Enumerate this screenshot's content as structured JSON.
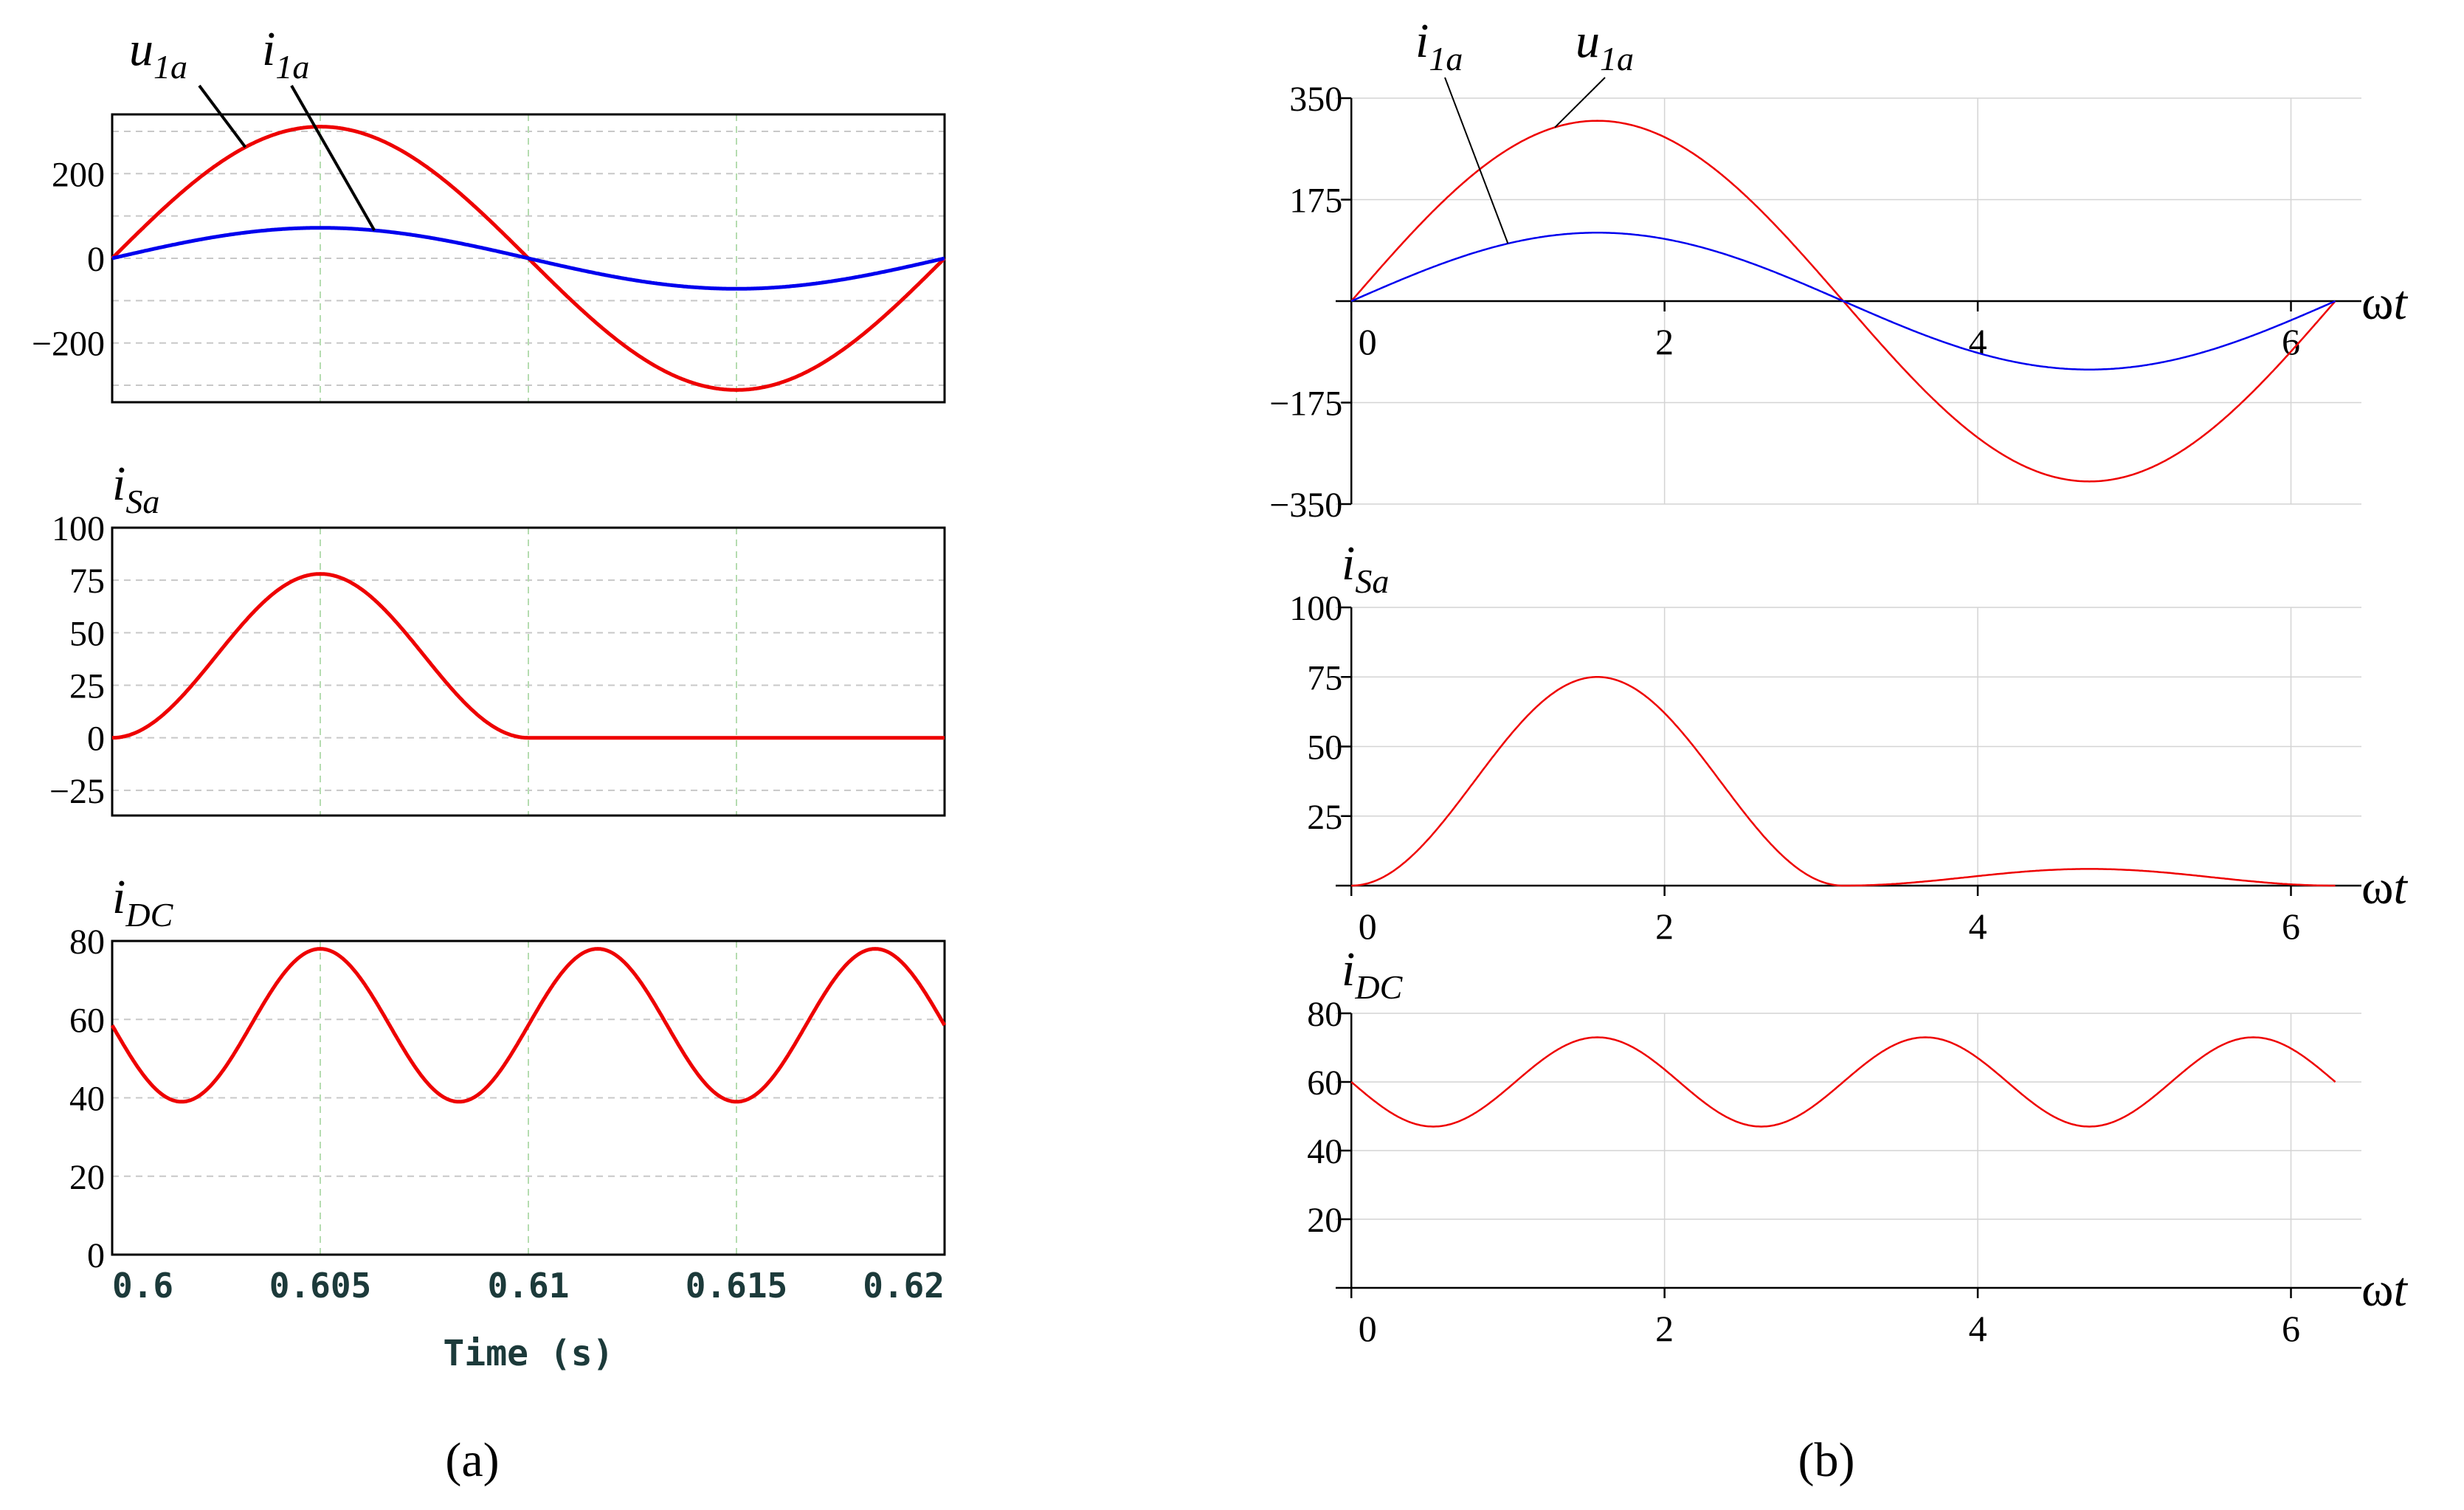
{
  "panel_labels": {
    "a": "(a)",
    "b": "(b)"
  },
  "colors": {
    "red": "#ee0000",
    "blue": "#0000ee",
    "axis": "#000000",
    "grid_a": "#c8c8c8",
    "grid_a_v": "#b5dcb0",
    "grid_b": "#d4d4d4",
    "tick_label_a": "#1c3a3a"
  },
  "chart_data": [
    {
      "id": "a1",
      "type": "line",
      "panel": "a",
      "xlim": [
        0.6,
        0.62
      ],
      "ylim": [
        -340,
        340
      ],
      "yticks": [
        -200,
        0,
        200
      ],
      "ytick_labels": [
        "−200",
        "0",
        "200"
      ],
      "ygrid": [
        -300,
        -200,
        -100,
        0,
        100,
        200,
        300
      ],
      "xgrid": [
        0.605,
        0.61,
        0.615
      ],
      "series": [
        {
          "name": "u1a",
          "color": "red",
          "shape": "sine",
          "amplitude": 311,
          "x0": 0.6,
          "period": 0.02
        },
        {
          "name": "i1a",
          "color": "blue",
          "shape": "sine",
          "amplitude": 72,
          "x0": 0.6,
          "period": 0.02
        }
      ],
      "annotations": [
        {
          "letter": "u",
          "subscript": "1a",
          "target_series": "u1a",
          "target_x": 0.6032
        },
        {
          "letter": "i",
          "subscript": "1a",
          "target_series": "i1a",
          "target_x": 0.6063
        }
      ]
    },
    {
      "id": "a2",
      "type": "line",
      "panel": "a",
      "xlim": [
        0.6,
        0.62
      ],
      "ylim": [
        -37,
        100
      ],
      "yticks": [
        -25,
        0,
        25,
        50,
        75,
        100
      ],
      "ytick_labels": [
        "−25",
        "0",
        "25",
        "50",
        "75",
        "100"
      ],
      "ygrid": [
        -25,
        0,
        25,
        50,
        75
      ],
      "xgrid": [
        0.605,
        0.61,
        0.615
      ],
      "ylabel": {
        "letter": "i",
        "subscript": "Sa"
      },
      "series": [
        {
          "name": "iSa",
          "color": "red",
          "shape": "sin2",
          "amplitude": 78,
          "x0": 0.6,
          "period": 0.02
        }
      ]
    },
    {
      "id": "a3",
      "type": "line",
      "panel": "a",
      "xlim": [
        0.6,
        0.62
      ],
      "ylim": [
        0,
        80
      ],
      "yticks": [
        0,
        20,
        40,
        60,
        80
      ],
      "ytick_labels": [
        "0",
        "20",
        "40",
        "60",
        "80"
      ],
      "ygrid": [
        20,
        40,
        60
      ],
      "xgrid": [
        0.605,
        0.61,
        0.615
      ],
      "ylabel": {
        "letter": "i",
        "subscript": "DC"
      },
      "xticks": [
        0.6,
        0.605,
        0.61,
        0.615,
        0.62
      ],
      "xtick_labels": [
        "0.6",
        "0.605",
        "0.61",
        "0.615",
        "0.62"
      ],
      "xlabel": "Time (s)",
      "series": [
        {
          "name": "iDC",
          "color": "red",
          "shape": "cos3",
          "offset": 58.5,
          "amplitude": 19.5,
          "x0": 0.6,
          "period": 0.02
        }
      ]
    },
    {
      "id": "b1",
      "type": "line",
      "panel": "b",
      "xlim": [
        -0.1,
        6.45
      ],
      "ylim": [
        -350,
        350
      ],
      "yticks": [
        -350,
        -175,
        175,
        350
      ],
      "ytick_labels": [
        "−350",
        "−175",
        "175",
        "350"
      ],
      "xticks": [
        0,
        2,
        4,
        6
      ],
      "xtick_labels": [
        "0",
        "2",
        "4",
        "6"
      ],
      "xgrid": [
        2,
        4,
        6
      ],
      "ygrid": [
        -350,
        -175,
        175,
        350
      ],
      "xlabel": {
        "greek": "ω",
        "letter": "t"
      },
      "series": [
        {
          "name": "u1a",
          "color": "red",
          "shape": "sine",
          "amplitude": 311,
          "x0": 0,
          "period": 6.2832,
          "xmax": 6.2832
        },
        {
          "name": "i1a",
          "color": "blue",
          "shape": "sine",
          "amplitude": 118,
          "x0": 0,
          "period": 6.2832,
          "xmax": 6.2832
        }
      ],
      "annotations": [
        {
          "letter": "i",
          "subscript": "1a",
          "target_series": "i1a",
          "target_x": 1.0
        },
        {
          "letter": "u",
          "subscript": "1a",
          "target_series": "u1a",
          "target_x": 1.3
        }
      ]
    },
    {
      "id": "b2",
      "type": "line",
      "panel": "b",
      "xlim": [
        -0.1,
        6.45
      ],
      "ylim": [
        0,
        100
      ],
      "yticks": [
        25,
        50,
        75,
        100
      ],
      "ytick_labels": [
        "25",
        "50",
        "75",
        "100"
      ],
      "xticks": [
        0,
        2,
        4,
        6
      ],
      "xtick_labels": [
        "0",
        "2",
        "4",
        "6"
      ],
      "xgrid": [
        2,
        4,
        6
      ],
      "ygrid": [
        25,
        50,
        75,
        100
      ],
      "ylabel": {
        "letter": "i",
        "subscript": "Sa"
      },
      "xlabel": {
        "greek": "ω",
        "letter": "t"
      },
      "series": [
        {
          "name": "iSa",
          "color": "red",
          "shape": "sin2pos_small_neg",
          "amplitude": 75,
          "neg_amplitude": 6,
          "x0": 0,
          "period": 6.2832,
          "xmax": 6.2832
        }
      ]
    },
    {
      "id": "b3",
      "type": "line",
      "panel": "b",
      "xlim": [
        -0.1,
        6.45
      ],
      "ylim": [
        0,
        80
      ],
      "yticks": [
        20,
        40,
        60,
        80
      ],
      "ytick_labels": [
        "20",
        "40",
        "60",
        "80"
      ],
      "xticks": [
        0,
        2,
        4,
        6
      ],
      "xtick_labels": [
        "0",
        "2",
        "4",
        "6"
      ],
      "xgrid": [
        2,
        4,
        6
      ],
      "ygrid": [
        20,
        40,
        60,
        80
      ],
      "ylabel": {
        "letter": "i",
        "subscript": "DC"
      },
      "xlabel": {
        "greek": "ω",
        "letter": "t"
      },
      "series": [
        {
          "name": "iDC",
          "color": "red",
          "shape": "cos3",
          "offset": 60,
          "amplitude": 13,
          "x0": 0,
          "period": 6.2832,
          "xmax": 6.2832
        }
      ]
    }
  ]
}
